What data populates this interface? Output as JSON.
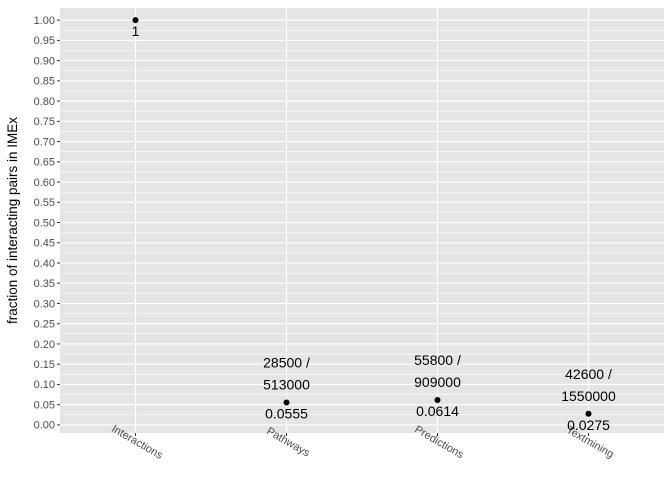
{
  "chart_data": {
    "type": "scatter",
    "title": "",
    "xlabel": "",
    "ylabel": "fraction of interacting pairs in IMEx",
    "ylim": [
      -0.02,
      1.03
    ],
    "y_ticks": [
      0.0,
      0.05,
      0.1,
      0.15,
      0.2,
      0.25,
      0.3,
      0.35,
      0.4,
      0.45,
      0.5,
      0.55,
      0.6,
      0.65,
      0.7,
      0.75,
      0.8,
      0.85,
      0.9,
      0.95,
      1.0
    ],
    "y_tick_labels": [
      "0.00",
      "0.05",
      "0.10",
      "0.15",
      "0.20",
      "0.25",
      "0.30",
      "0.35",
      "0.40",
      "0.45",
      "0.50",
      "0.55",
      "0.60",
      "0.65",
      "0.70",
      "0.75",
      "0.80",
      "0.85",
      "0.90",
      "0.95",
      "1.00"
    ],
    "categories": [
      "Interactions",
      "Pathways",
      "Predictions",
      "Textmining"
    ],
    "values": [
      1.0,
      0.0555,
      0.0614,
      0.0275
    ],
    "value_labels": [
      "1",
      "0.0555",
      "0.0614",
      "0.0275"
    ],
    "count_labels": [
      [],
      [
        "28500 /",
        "513000"
      ],
      [
        "55800 /",
        "909000"
      ],
      [
        "42600 /",
        "1550000"
      ]
    ],
    "grid": true,
    "panel_background": "#e5e5e5",
    "grid_color": "#ffffff",
    "point_color": "#000000"
  }
}
